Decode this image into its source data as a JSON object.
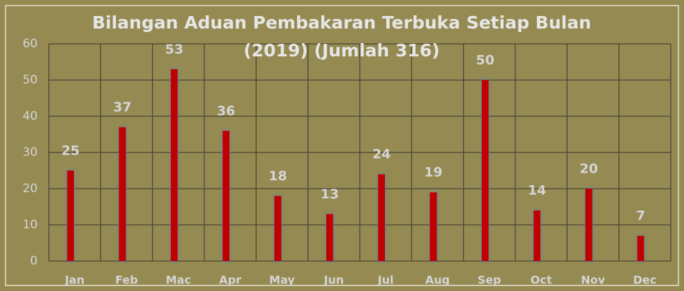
{
  "chart_data": {
    "type": "bar",
    "title": [
      "Bilangan Aduan Pembakaran Terbuka Setiap Bulan",
      "(2019) (Jumlah 316)"
    ],
    "categories": [
      "Jan",
      "Feb",
      "Mac",
      "Apr",
      "May",
      "Jun",
      "Jul",
      "Aug",
      "Sep",
      "Oct",
      "Nov",
      "Dec"
    ],
    "values": [
      25,
      37,
      53,
      36,
      18,
      13,
      24,
      19,
      50,
      14,
      20,
      7
    ],
    "color": "#c00000",
    "ylim": [
      0,
      60
    ],
    "yticks": [
      0,
      10,
      20,
      30,
      40,
      50,
      60
    ],
    "grid": true
  }
}
